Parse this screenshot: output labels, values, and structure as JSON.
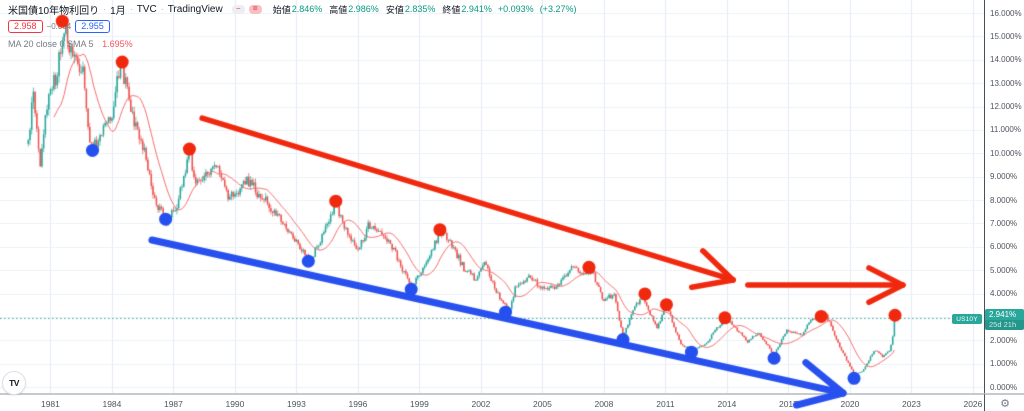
{
  "header": {
    "title": "米国債10年物利回り",
    "separator": "·",
    "timeframe": "1月",
    "exchange": "TVC",
    "platform": "TradingView",
    "badge_minus": "−",
    "badge_rows": "=",
    "open_label": "始値",
    "open_value": "2.846%",
    "high_label": "高値",
    "high_value": "2.986%",
    "low_label": "安値",
    "low_value": "2.835%",
    "close_label": "終値",
    "close_value": "2.941%",
    "change": "+0.093%",
    "change_pct": "(+3.27%)",
    "sell_price": "2.958",
    "spread": "−0.004",
    "buy_price": "2.955",
    "ma_label": "MA 20 close 0 SMA 5",
    "ma_value": "1.695%"
  },
  "footer": {
    "logo_text": "TV",
    "gear_glyph": "⚙"
  },
  "colors": {
    "up": "#26a69a",
    "down": "#ef5350",
    "ma_line": "#f56d6d",
    "value_teal": "#089981",
    "badge_teal": "#2aa79b",
    "drawing_red": "#f0280e",
    "drawing_blue": "#2750ef",
    "dot_red": "#f0280e",
    "dot_blue": "#2450f0",
    "grid_v": "#e2ebf5",
    "grid_h": "#edf2f8",
    "price_dotted": "#3fa79e"
  },
  "chart_data": {
    "type": "candlestick",
    "symbol": "US10Y",
    "title": "米国債10年物利回り 1月 TVC",
    "ylim": [
      0,
      16
    ],
    "xlim": [
      1978.54,
      2026.54
    ],
    "grid": true,
    "y_axis": {
      "labels": [
        "16.000%",
        "15.000%",
        "14.000%",
        "13.000%",
        "12.000%",
        "11.000%",
        "10.000%",
        "9.000%",
        "8.000%",
        "7.000%",
        "6.000%",
        "5.000%",
        "4.000%",
        "3.000%",
        "2.000%",
        "1.000%",
        "0.000%"
      ],
      "values": [
        16,
        15,
        14,
        13,
        12,
        11,
        10,
        9,
        8,
        7,
        6,
        5,
        4,
        3,
        2,
        1,
        0
      ]
    },
    "x_axis": {
      "labels": [
        "1981",
        "1984",
        "1987",
        "1990",
        "1993",
        "1996",
        "1999",
        "2002",
        "2005",
        "2008",
        "2011",
        "2014",
        "2017",
        "2020",
        "2023",
        "2026"
      ],
      "years": [
        1981,
        1984,
        1987,
        1990,
        1993,
        1996,
        1999,
        2002,
        2005,
        2008,
        2011,
        2014,
        2017,
        2020,
        2023,
        2026
      ]
    },
    "price_line": {
      "value": 2.941,
      "label": "2.941%",
      "countdown": "25d 21h",
      "symbol": "US10Y"
    },
    "series_anchors": [
      [
        1979.92,
        10.4
      ],
      [
        1980.17,
        12.7
      ],
      [
        1980.5,
        9.6
      ],
      [
        1980.92,
        12.5
      ],
      [
        1981.25,
        13.2
      ],
      [
        1981.7,
        15.55
      ],
      [
        1982.0,
        14.2
      ],
      [
        1982.6,
        13.6
      ],
      [
        1982.95,
        10.4
      ],
      [
        1983.08,
        10.15
      ],
      [
        1983.5,
        11.0
      ],
      [
        1984.0,
        11.8
      ],
      [
        1984.45,
        13.85
      ],
      [
        1985.0,
        11.5
      ],
      [
        1985.5,
        10.4
      ],
      [
        1986.1,
        8.0
      ],
      [
        1986.62,
        7.15
      ],
      [
        1987.1,
        7.5
      ],
      [
        1987.78,
        10.15
      ],
      [
        1988.1,
        8.7
      ],
      [
        1988.7,
        9.2
      ],
      [
        1989.2,
        9.45
      ],
      [
        1989.7,
        8.0
      ],
      [
        1990.6,
        8.9
      ],
      [
        1991.3,
        8.1
      ],
      [
        1992.0,
        7.5
      ],
      [
        1992.6,
        6.6
      ],
      [
        1993.0,
        6.3
      ],
      [
        1993.58,
        5.4
      ],
      [
        1994.0,
        5.9
      ],
      [
        1994.9,
        7.9
      ],
      [
        1995.5,
        6.5
      ],
      [
        1996.0,
        5.8
      ],
      [
        1996.5,
        6.9
      ],
      [
        1997.2,
        6.6
      ],
      [
        1997.9,
        5.6
      ],
      [
        1998.6,
        4.25
      ],
      [
        1999.0,
        4.8
      ],
      [
        1999.7,
        6.0
      ],
      [
        2000.0,
        6.7
      ],
      [
        2000.7,
        5.9
      ],
      [
        2001.2,
        5.0
      ],
      [
        2001.8,
        4.6
      ],
      [
        2002.2,
        5.3
      ],
      [
        2002.8,
        4.0
      ],
      [
        2003.4,
        3.25
      ],
      [
        2003.7,
        4.3
      ],
      [
        2004.4,
        4.7
      ],
      [
        2005.0,
        4.2
      ],
      [
        2005.7,
        4.3
      ],
      [
        2006.5,
        5.15
      ],
      [
        2007.0,
        4.7
      ],
      [
        2007.4,
        5.0
      ],
      [
        2008.0,
        3.7
      ],
      [
        2008.5,
        4.0
      ],
      [
        2008.93,
        2.1
      ],
      [
        2009.4,
        3.3
      ],
      [
        2009.9,
        3.85
      ],
      [
        2010.6,
        2.5
      ],
      [
        2011.05,
        3.5
      ],
      [
        2011.7,
        1.9
      ],
      [
        2012.27,
        1.5
      ],
      [
        2013.0,
        1.9
      ],
      [
        2013.9,
        2.95
      ],
      [
        2014.7,
        2.3
      ],
      [
        2015.0,
        1.9
      ],
      [
        2015.5,
        2.35
      ],
      [
        2016.3,
        1.38
      ],
      [
        2016.95,
        2.45
      ],
      [
        2017.6,
        2.2
      ],
      [
        2018.1,
        2.85
      ],
      [
        2018.8,
        3.15
      ],
      [
        2019.6,
        1.55
      ],
      [
        2020.2,
        0.55
      ],
      [
        2020.6,
        0.65
      ],
      [
        2021.2,
        1.6
      ],
      [
        2021.6,
        1.3
      ],
      [
        2021.95,
        1.6
      ],
      [
        2022.25,
        2.941
      ]
    ],
    "markers": {
      "red_peaks": [
        [
          1981.58,
          15.65
        ],
        [
          1984.5,
          13.9
        ],
        [
          1987.78,
          10.18
        ],
        [
          1994.92,
          7.95
        ],
        [
          2000.0,
          6.73
        ],
        [
          2007.27,
          5.12
        ],
        [
          2010.0,
          3.98
        ],
        [
          2011.05,
          3.52
        ],
        [
          2013.9,
          2.96
        ],
        [
          2018.6,
          3.02
        ],
        [
          2022.2,
          3.07
        ]
      ],
      "blue_troughs": [
        [
          1983.05,
          10.12
        ],
        [
          1986.62,
          7.18
        ],
        [
          1993.58,
          5.38
        ],
        [
          1998.6,
          4.18
        ],
        [
          2003.2,
          3.2
        ],
        [
          2008.93,
          2.03
        ],
        [
          2012.27,
          1.49
        ],
        [
          2016.3,
          1.23
        ],
        [
          2020.2,
          0.37
        ]
      ]
    },
    "trend_arrows": [
      {
        "color": "red",
        "from": [
          1988.4,
          11.5
        ],
        "to": [
          2014.3,
          4.58
        ],
        "width": 5.5,
        "barb": 42
      },
      {
        "color": "red",
        "from": [
          2015.02,
          4.36
        ],
        "to": [
          2022.58,
          4.36
        ],
        "width": 5.5,
        "barb": 38
      },
      {
        "color": "blue",
        "from": [
          1985.95,
          6.29
        ],
        "to": [
          2019.66,
          -0.26
        ],
        "width": 7,
        "barb": 48
      }
    ]
  }
}
